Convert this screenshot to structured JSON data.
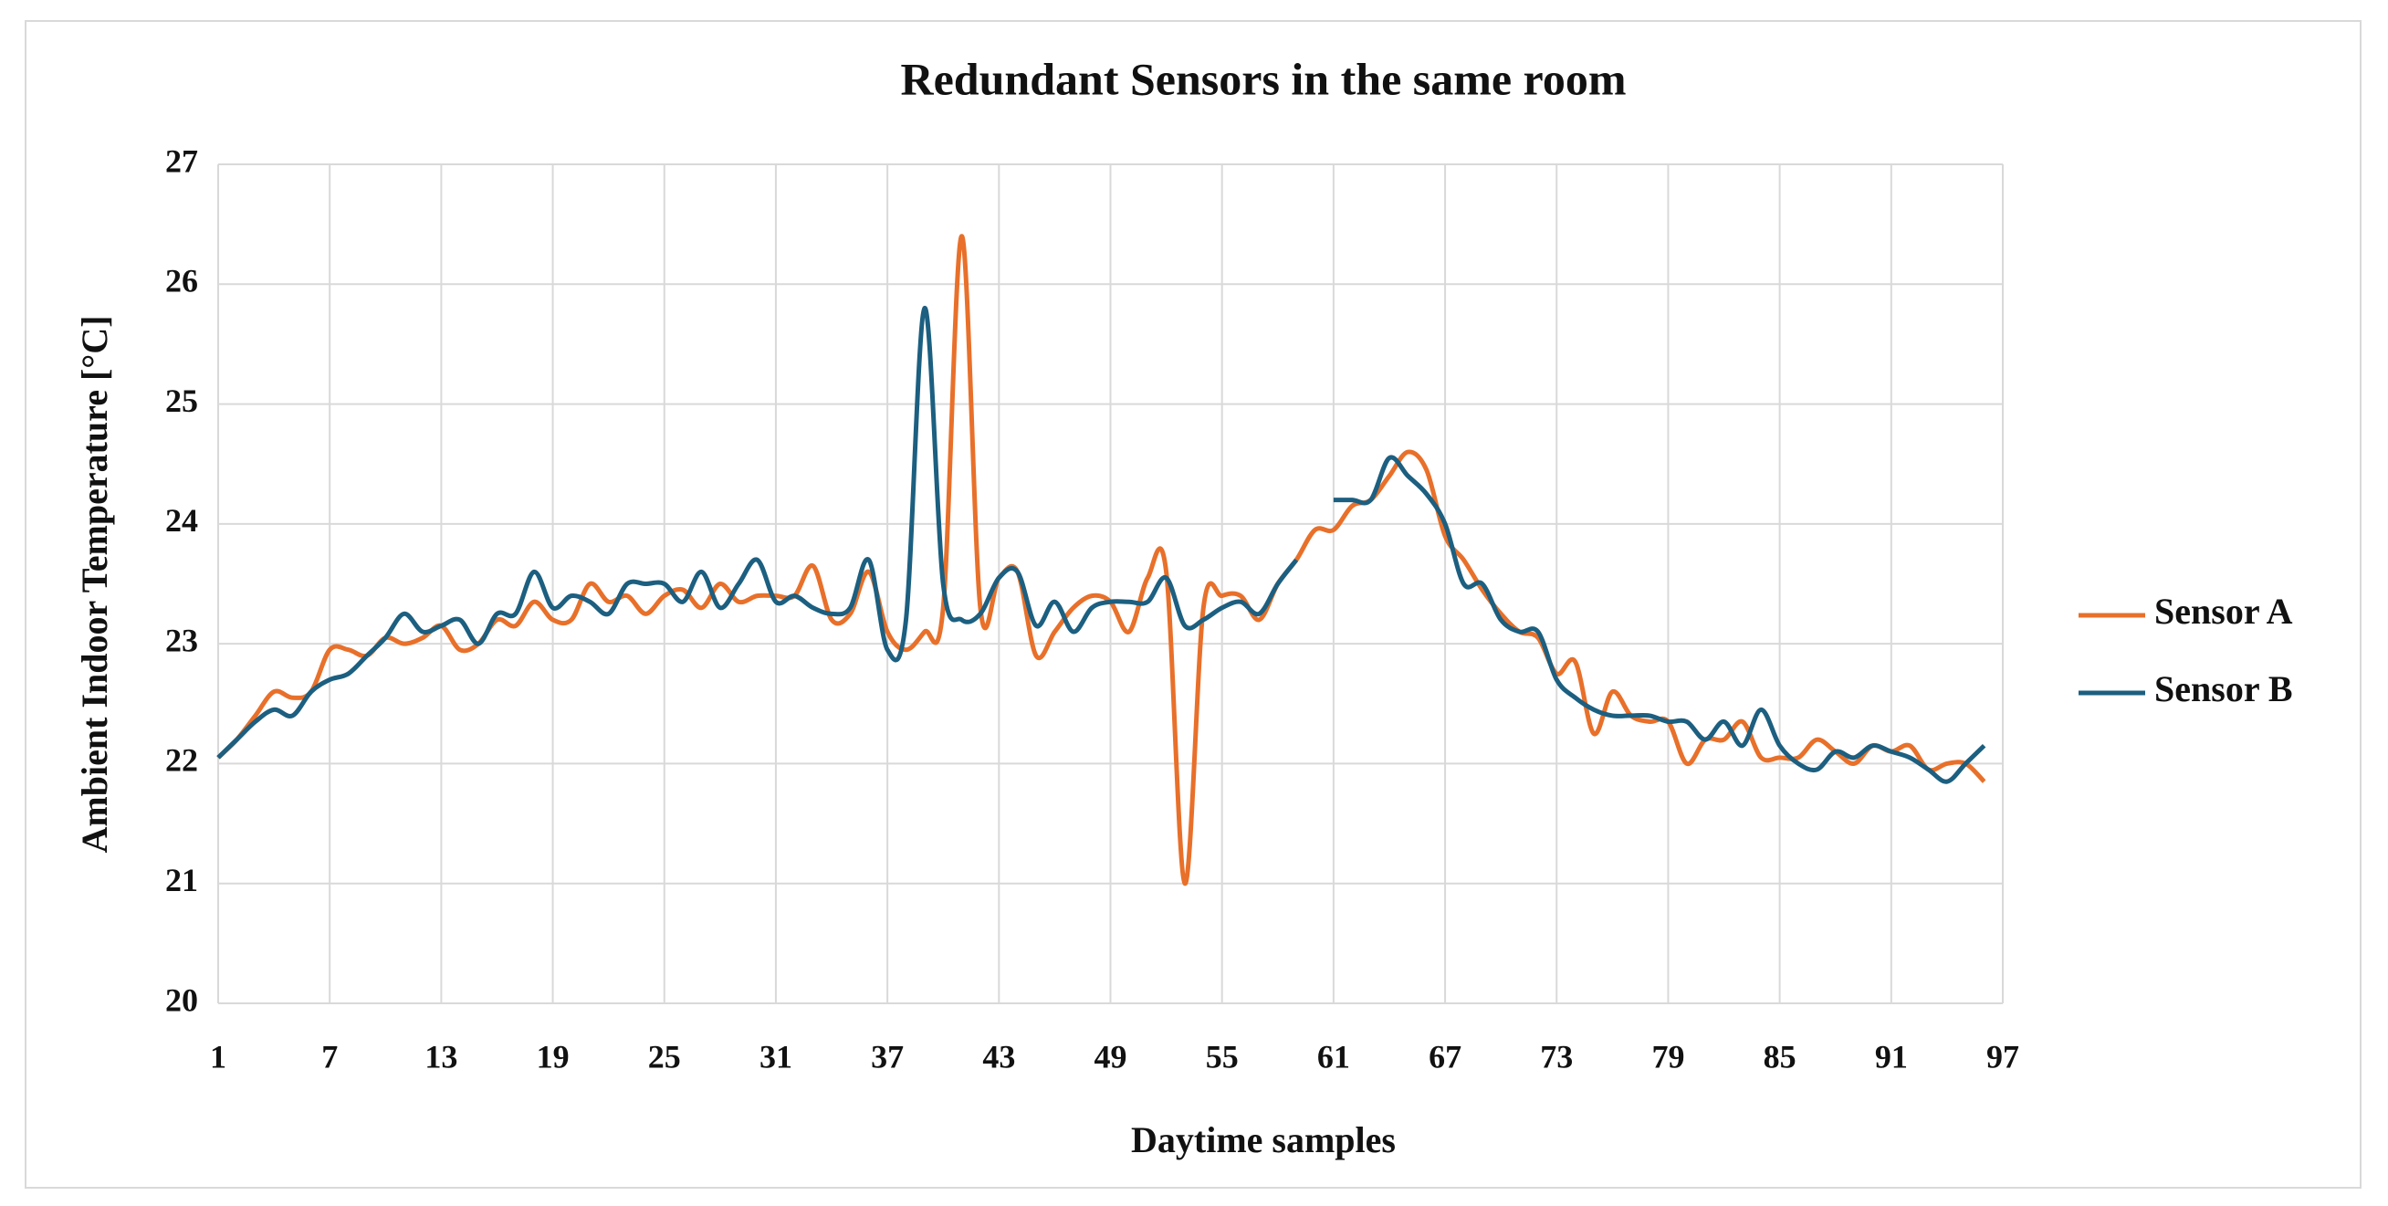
{
  "chart_data": {
    "type": "line",
    "title": "Redundant Sensors in the same room",
    "x_label": "Daytime samples",
    "y_label": "Ambient Indoor Temperature [°C]",
    "x": [
      1,
      2,
      3,
      4,
      5,
      6,
      7,
      8,
      9,
      10,
      11,
      12,
      13,
      14,
      15,
      16,
      17,
      18,
      19,
      20,
      21,
      22,
      23,
      24,
      25,
      26,
      27,
      28,
      29,
      30,
      31,
      32,
      33,
      34,
      35,
      36,
      37,
      38,
      39,
      40,
      41,
      42,
      43,
      44,
      45,
      46,
      47,
      48,
      49,
      50,
      51,
      52,
      53,
      54,
      55,
      56,
      57,
      58,
      59,
      60,
      61,
      62,
      63,
      64,
      65,
      66,
      67,
      68,
      69,
      70,
      71,
      72,
      73,
      74,
      75,
      76,
      77,
      78,
      79,
      80,
      81,
      82,
      83,
      84,
      85,
      86,
      87,
      88,
      89,
      90,
      91,
      92,
      93,
      94,
      95,
      96
    ],
    "series": [
      {
        "name": "Sensor A",
        "color": "#e8702a",
        "values": [
          22.05,
          22.2,
          22.4,
          22.6,
          22.55,
          22.6,
          22.95,
          22.95,
          22.9,
          23.05,
          23.0,
          23.05,
          23.15,
          22.95,
          23.0,
          23.2,
          23.15,
          23.35,
          23.2,
          23.2,
          23.5,
          23.35,
          23.4,
          23.25,
          23.4,
          23.45,
          23.3,
          23.5,
          23.35,
          23.4,
          23.4,
          23.4,
          23.65,
          23.2,
          23.25,
          23.6,
          23.1,
          22.95,
          23.1,
          23.3,
          26.4,
          23.3,
          23.55,
          23.6,
          22.9,
          23.1,
          23.3,
          23.4,
          23.35,
          23.1,
          23.55,
          23.6,
          21.0,
          23.3,
          23.4,
          23.4,
          23.2,
          23.5,
          23.7,
          23.95,
          23.95,
          24.15,
          24.2,
          24.4,
          24.6,
          24.45,
          23.9,
          23.7,
          23.45,
          23.25,
          23.1,
          23.05,
          22.75,
          22.85,
          22.25,
          22.6,
          22.4,
          22.35,
          22.35,
          22.0,
          22.2,
          22.2,
          22.35,
          22.05,
          22.05,
          22.05,
          22.2,
          22.1,
          22.0,
          22.15,
          22.1,
          22.15,
          21.95,
          22.0,
          22.0,
          21.85
        ]
      },
      {
        "name": "Sensor B",
        "color": "#1c5f80",
        "values": [
          22.05,
          22.2,
          22.35,
          22.45,
          22.4,
          22.6,
          22.7,
          22.75,
          22.9,
          23.05,
          23.25,
          23.1,
          23.15,
          23.2,
          23.0,
          23.25,
          23.25,
          23.6,
          23.3,
          23.4,
          23.35,
          23.25,
          23.5,
          23.5,
          23.5,
          23.35,
          23.6,
          23.3,
          23.5,
          23.7,
          23.35,
          23.4,
          23.3,
          23.25,
          23.3,
          23.7,
          22.95,
          23.2,
          25.8,
          23.5,
          23.2,
          23.25,
          23.55,
          23.6,
          23.15,
          23.35,
          23.1,
          23.3,
          23.35,
          23.35,
          23.35,
          23.55,
          23.15,
          23.2,
          23.3,
          23.35,
          23.25,
          23.5,
          23.7,
          null,
          24.2,
          24.2,
          24.2,
          24.55,
          24.4,
          24.25,
          24.0,
          23.5,
          23.5,
          23.2,
          23.1,
          23.1,
          22.7,
          22.55,
          22.45,
          22.4,
          22.4,
          22.4,
          22.35,
          22.35,
          22.2,
          22.35,
          22.15,
          22.45,
          22.15,
          22.0,
          21.95,
          22.1,
          22.05,
          22.15,
          22.1,
          22.05,
          21.95,
          21.85,
          22.0,
          22.15
        ]
      }
    ],
    "xlim": [
      1,
      97
    ],
    "xticks": [
      1,
      7,
      13,
      19,
      25,
      31,
      37,
      43,
      49,
      55,
      61,
      67,
      73,
      79,
      85,
      91,
      97
    ],
    "ylim": [
      20,
      27
    ],
    "yticks": [
      20,
      21,
      22,
      23,
      24,
      25,
      26,
      27
    ],
    "grid": true,
    "legend": "right"
  }
}
